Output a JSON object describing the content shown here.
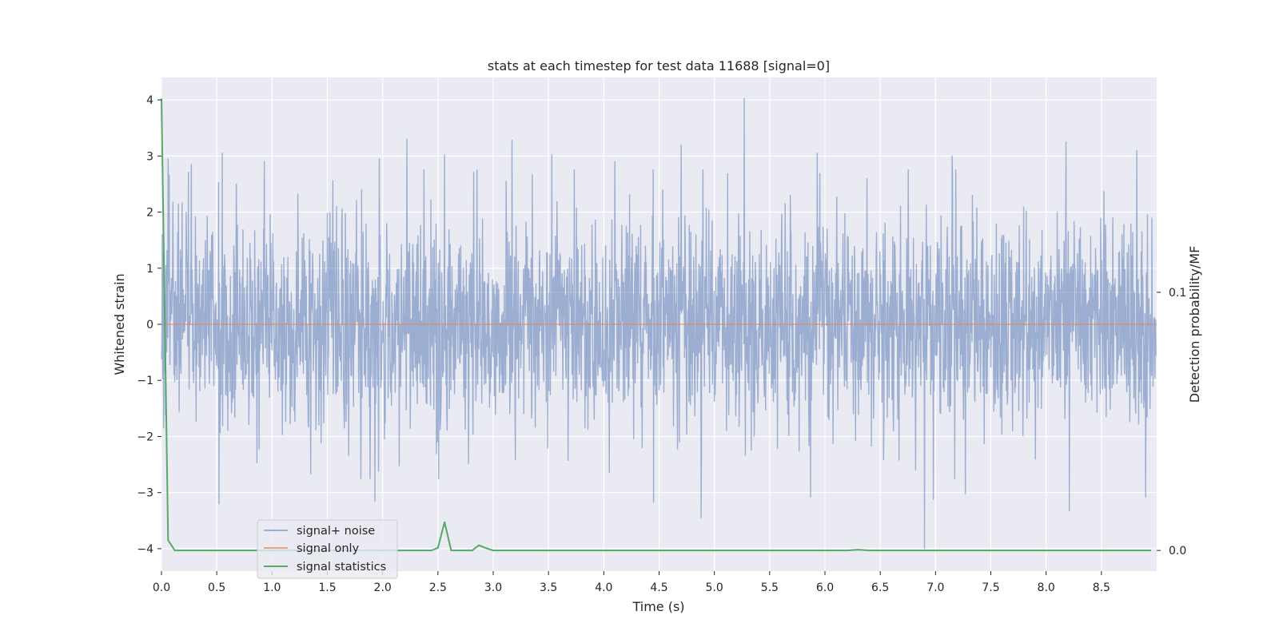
{
  "chart_data": {
    "type": "line",
    "title": "stats at each timestep for test data 11688 [signal=0]",
    "xlabel": "Time (s)",
    "ylabel": "Whitened strain",
    "y2label": "Detection probability/MF",
    "xlim": [
      0,
      9.0
    ],
    "ylim": [
      -4.4,
      4.4
    ],
    "y2lim": [
      -0.008,
      0.1832
    ],
    "xticks": [
      "0.0",
      "0.5",
      "1.0",
      "1.5",
      "2.0",
      "2.5",
      "3.0",
      "3.5",
      "4.0",
      "4.5",
      "5.0",
      "5.5",
      "6.0",
      "6.5",
      "7.0",
      "7.5",
      "8.0",
      "8.5"
    ],
    "yticks": [
      "−4",
      "−3",
      "−2",
      "−1",
      "0",
      "1",
      "2",
      "3",
      "4"
    ],
    "y2ticks": [
      "0.0",
      "0.1"
    ],
    "grid": true,
    "legend_position": "lower-left",
    "colors": {
      "noise": "#4c72b0",
      "signal": "#dd8452",
      "stats": "#55a868",
      "background": "#eaeaf2",
      "grid": "#ffffff"
    },
    "series": [
      {
        "name": "signal+ noise",
        "axis": "left",
        "sample_rate_hz": 300,
        "envelope_std": 0.95,
        "peaks": [
          [
            0.06,
            2.95
          ],
          [
            0.27,
            2.85
          ],
          [
            0.55,
            3.05
          ],
          [
            0.93,
            2.9
          ],
          [
            1.97,
            2.95
          ],
          [
            2.22,
            3.3
          ],
          [
            2.56,
            3.02
          ],
          [
            3.17,
            3.28
          ],
          [
            3.53,
            3.02
          ],
          [
            4.1,
            2.9
          ],
          [
            4.7,
            3.2
          ],
          [
            5.27,
            4.02
          ],
          [
            5.93,
            3.05
          ],
          [
            7.15,
            3.0
          ],
          [
            8.18,
            3.25
          ],
          [
            8.82,
            3.1
          ],
          [
            0.52,
            -3.2
          ],
          [
            1.93,
            -3.15
          ],
          [
            4.45,
            -3.17
          ],
          [
            4.88,
            -3.45
          ],
          [
            5.87,
            -3.08
          ],
          [
            6.9,
            -4.0
          ],
          [
            6.98,
            -3.12
          ],
          [
            7.27,
            -3.02
          ],
          [
            8.21,
            -3.33
          ],
          [
            8.9,
            -3.08
          ],
          [
            0.02,
            -1.85
          ]
        ]
      },
      {
        "name": "signal only",
        "axis": "left",
        "x": [
          0.0,
          9.0
        ],
        "y": [
          0.0,
          0.0
        ]
      },
      {
        "name": "signal statistics",
        "axis": "right",
        "x": [
          0.0,
          0.06,
          0.12,
          0.2,
          2.44,
          2.5,
          2.56,
          2.62,
          2.75,
          2.81,
          2.87,
          2.93,
          3.0,
          6.2,
          6.3,
          6.4,
          9.0
        ],
        "y": [
          0.175,
          0.004,
          0.0,
          0.0,
          0.0,
          0.001,
          0.011,
          0.0,
          0.0,
          0.0,
          0.002,
          0.001,
          0.0,
          0.0,
          0.0003,
          0.0,
          0.0
        ]
      }
    ]
  }
}
